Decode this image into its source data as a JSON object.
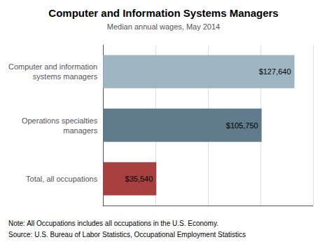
{
  "chart_data": {
    "type": "bar",
    "orientation": "horizontal",
    "title": "Computer and Information Systems Managers",
    "subtitle": "Median annual wages, May 2014",
    "categories": [
      "Computer and information\nsystems managers",
      "Operations specialties\nmanagers",
      "Total, all occupations"
    ],
    "values": [
      127640,
      105750,
      35540
    ],
    "value_labels": [
      "$127,640",
      "$105,750",
      "$35,540"
    ],
    "colors": [
      "#9eb5c2",
      "#607b8c",
      "#a84040"
    ],
    "xlim": [
      0,
      140000
    ],
    "xticks": [
      0,
      35000,
      70000,
      105000,
      140000
    ],
    "grid": true,
    "tick_labels": "y",
    "data_labels": true,
    "annotations": [
      "Note: All Occupations includes all occupations in the U.S. Economy.",
      "Source: U.S. Bureau of Labor Statistics, Occupational Employment Statistics"
    ]
  }
}
